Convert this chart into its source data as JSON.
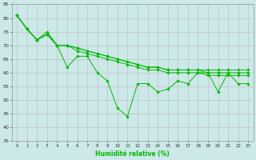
{
  "xlabel": "Humidité relative (%)",
  "background_color": "#cce8e8",
  "grid_color": "#bbbbbb",
  "line_color": "#00bb00",
  "xlim": [
    -0.5,
    23.5
  ],
  "ylim": [
    35,
    85
  ],
  "yticks": [
    35,
    40,
    45,
    50,
    55,
    60,
    65,
    70,
    75,
    80,
    85
  ],
  "xticks": [
    0,
    1,
    2,
    3,
    4,
    5,
    6,
    7,
    8,
    9,
    10,
    11,
    12,
    13,
    14,
    15,
    16,
    17,
    18,
    19,
    20,
    21,
    22,
    23
  ],
  "series": [
    [
      81,
      76,
      72,
      75,
      70,
      62,
      66,
      66,
      60,
      57,
      47,
      44,
      56,
      56,
      53,
      54,
      57,
      56,
      60,
      60,
      53,
      60,
      56,
      56
    ],
    [
      81,
      76,
      72,
      74,
      70,
      70,
      69,
      68,
      67,
      66,
      65,
      64,
      63,
      62,
      62,
      61,
      61,
      61,
      61,
      61,
      61,
      61,
      61,
      61
    ],
    [
      81,
      76,
      72,
      74,
      70,
      70,
      69,
      68,
      67,
      66,
      65,
      64,
      63,
      62,
      62,
      61,
      61,
      61,
      61,
      60,
      60,
      60,
      60,
      60
    ],
    [
      81,
      76,
      72,
      74,
      70,
      70,
      68,
      67,
      66,
      65,
      64,
      63,
      62,
      61,
      61,
      60,
      60,
      60,
      60,
      59,
      59,
      59,
      59,
      59
    ]
  ],
  "figsize": [
    3.2,
    2.0
  ],
  "dpi": 100
}
